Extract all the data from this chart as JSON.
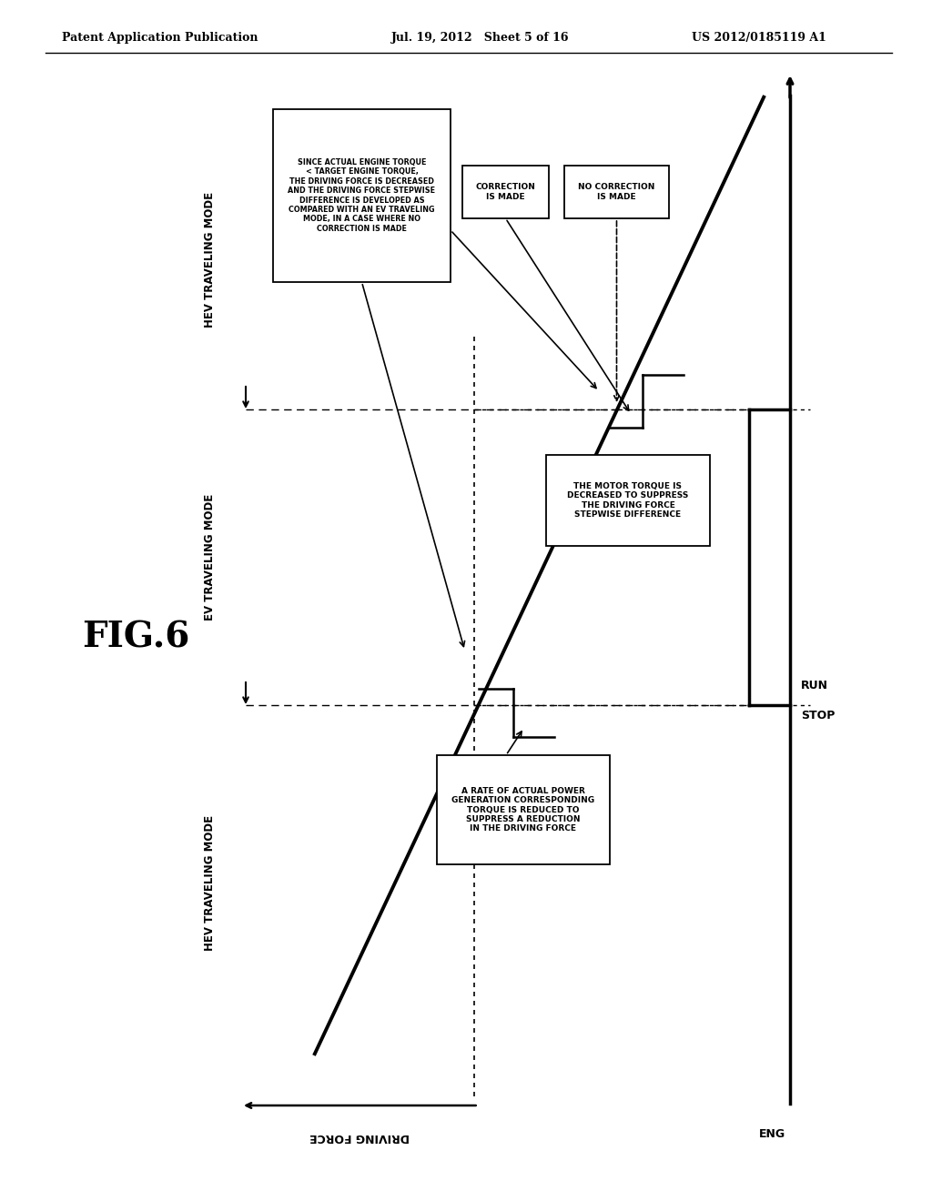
{
  "title_left": "Patent Application Publication",
  "title_center": "Jul. 19, 2012   Sheet 5 of 16",
  "title_right": "US 2012/0185119 A1",
  "fig_label": "FIG.6",
  "bg_color": "#ffffff",
  "text_color": "#000000",
  "mode_labels": [
    "HEV TRAVELING MODE",
    "EV TRAVELING MODE",
    "HEV TRAVELING MODE"
  ],
  "box1_text": "SINCE ACTUAL ENGINE TORQUE\n< TARGET ENGINE TORQUE,\nTHE DRIVING FORCE IS DECREASED\nAND THE DRIVING FORCE STEPWISE\nDIFFERENCE IS DEVELOPED AS\nCOMPARED WITH AN EV TRAVELING\nMODE, IN A CASE WHERE NO\nCORRECTION IS MADE",
  "box2_text": "CORRECTION\nIS MADE",
  "box3_text": "NO CORRECTION\nIS MADE",
  "box4_text": "THE MOTOR TORQUE IS\nDECREASED TO SUPPRESS\nTHE DRIVING FORCE\nSTEPWISE DIFFERENCE",
  "box5_text": "A RATE OF ACTUAL POWER\nGENERATION CORRESPONDING\nTORQUE IS REDUCED TO\nSUPPRESS A REDUCTION\nIN THE DRIVING FORCE",
  "axis_label": "DRIVING FORCE",
  "eng_label": "ENG",
  "run_label": "RUN",
  "stop_label": "STOP"
}
